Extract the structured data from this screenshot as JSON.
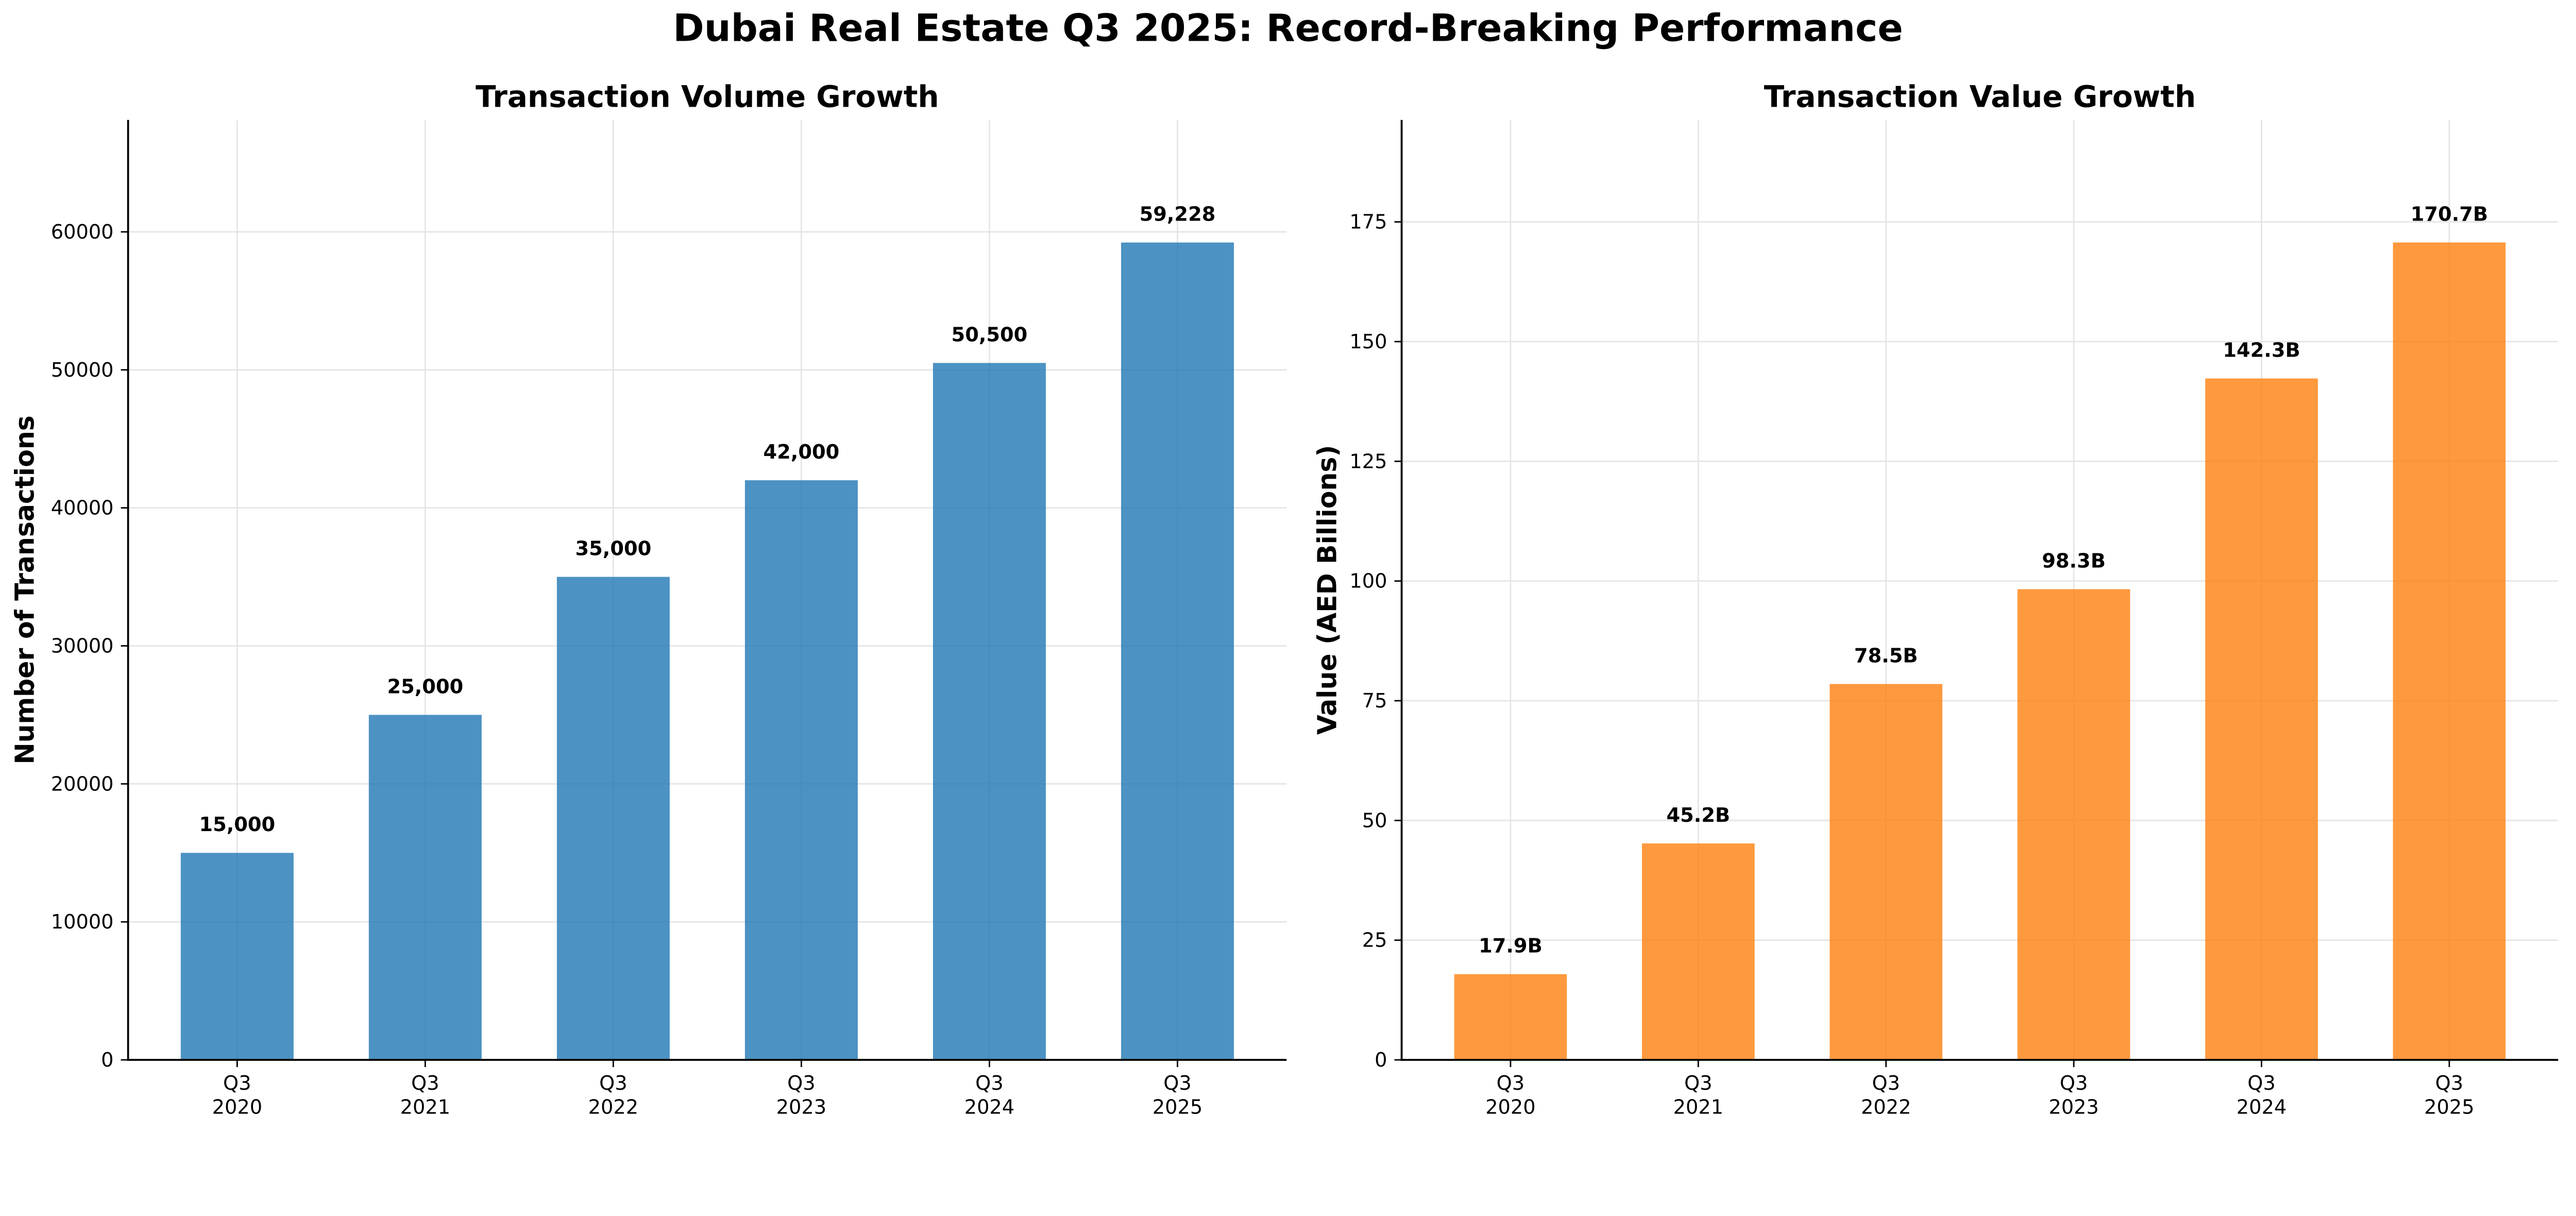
{
  "suptitle": "Dubai Real Estate Q3 2025: Record-Breaking Performance",
  "chart_data": [
    {
      "type": "bar",
      "title": "Transaction Volume Growth",
      "xlabel": "",
      "ylabel": "Number of Transactions",
      "categories": [
        "Q3\n2020",
        "Q3\n2021",
        "Q3\n2022",
        "Q3\n2023",
        "Q3\n2024",
        "Q3\n2025"
      ],
      "values": [
        15000,
        25000,
        35000,
        42000,
        50500,
        59228
      ],
      "data_labels": [
        "15,000",
        "25,000",
        "35,000",
        "42,000",
        "50,500",
        "59,228"
      ],
      "yticks": [
        0,
        10000,
        20000,
        30000,
        40000,
        50000,
        60000
      ],
      "ytick_labels": [
        "0",
        "10000",
        "20000",
        "30000",
        "40000",
        "50000",
        "60000"
      ],
      "ylim": [
        0,
        68112
      ],
      "grid": true,
      "color": "#1f77b4"
    },
    {
      "type": "bar",
      "title": "Transaction Value Growth",
      "xlabel": "",
      "ylabel": "Value (AED Billions)",
      "categories": [
        "Q3\n2020",
        "Q3\n2021",
        "Q3\n2022",
        "Q3\n2023",
        "Q3\n2024",
        "Q3\n2025"
      ],
      "values": [
        17.9,
        45.2,
        78.5,
        98.3,
        142.3,
        170.7
      ],
      "data_labels": [
        "17.9B",
        "45.2B",
        "78.5B",
        "98.3B",
        "142.3B",
        "170.7B"
      ],
      "yticks": [
        0,
        25,
        50,
        75,
        100,
        125,
        150,
        175
      ],
      "ytick_labels": [
        "0",
        "25",
        "50",
        "75",
        "100",
        "125",
        "150",
        "175"
      ],
      "ylim": [
        0,
        196.3
      ],
      "grid": true,
      "color": "#ff7f0e"
    }
  ]
}
